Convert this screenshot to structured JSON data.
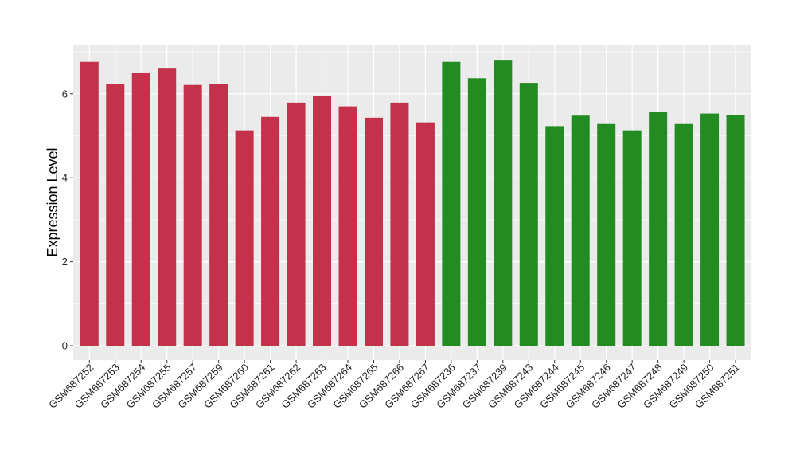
{
  "chart_data": {
    "type": "bar",
    "title": "",
    "xlabel": "",
    "ylabel": "Expression Level",
    "ylim": [
      0,
      7.15
    ],
    "yticks": [
      0,
      2,
      4,
      6
    ],
    "grid": true,
    "legend": "none",
    "colors": {
      "group1": "#C3314A",
      "group2": "#228B22",
      "panel": "#EBEBEB",
      "grid": "#FFFFFF"
    },
    "categories": [
      "GSM687252",
      "GSM687253",
      "GSM687254",
      "GSM687255",
      "GSM687257",
      "GSM687259",
      "GSM687260",
      "GSM687261",
      "GSM687262",
      "GSM687263",
      "GSM687264",
      "GSM687265",
      "GSM687266",
      "GSM687267",
      "GSM687236",
      "GSM687237",
      "GSM687239",
      "GSM687243",
      "GSM687244",
      "GSM687245",
      "GSM687246",
      "GSM687247",
      "GSM687248",
      "GSM687249",
      "GSM687250",
      "GSM687251"
    ],
    "values": [
      6.76,
      6.24,
      6.49,
      6.62,
      6.21,
      6.24,
      5.13,
      5.45,
      5.79,
      5.95,
      5.7,
      5.43,
      5.79,
      5.32,
      6.76,
      6.37,
      6.81,
      6.26,
      5.23,
      5.48,
      5.28,
      5.13,
      5.57,
      5.28,
      5.53,
      5.49
    ],
    "bar_groups": [
      "group1",
      "group1",
      "group1",
      "group1",
      "group1",
      "group1",
      "group1",
      "group1",
      "group1",
      "group1",
      "group1",
      "group1",
      "group1",
      "group1",
      "group2",
      "group2",
      "group2",
      "group2",
      "group2",
      "group2",
      "group2",
      "group2",
      "group2",
      "group2",
      "group2",
      "group2"
    ]
  }
}
